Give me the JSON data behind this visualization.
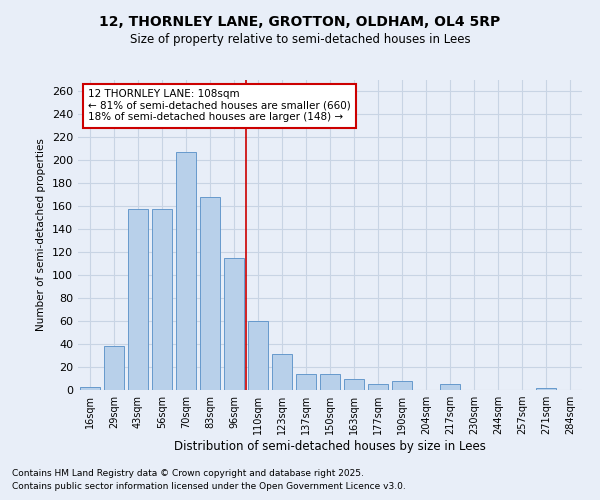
{
  "title1": "12, THORNLEY LANE, GROTTON, OLDHAM, OL4 5RP",
  "title2": "Size of property relative to semi-detached houses in Lees",
  "xlabel": "Distribution of semi-detached houses by size in Lees",
  "ylabel": "Number of semi-detached properties",
  "categories": [
    "16sqm",
    "29sqm",
    "43sqm",
    "56sqm",
    "70sqm",
    "83sqm",
    "96sqm",
    "110sqm",
    "123sqm",
    "137sqm",
    "150sqm",
    "163sqm",
    "177sqm",
    "190sqm",
    "204sqm",
    "217sqm",
    "230sqm",
    "244sqm",
    "257sqm",
    "271sqm",
    "284sqm"
  ],
  "values": [
    3,
    38,
    158,
    158,
    207,
    168,
    115,
    60,
    31,
    14,
    14,
    10,
    5,
    8,
    0,
    5,
    0,
    0,
    0,
    2,
    0
  ],
  "bar_color": "#b8d0ea",
  "bar_edge_color": "#6699cc",
  "grid_color": "#c8d4e4",
  "bg_color": "#e8eef8",
  "annotation_text": "12 THORNLEY LANE: 108sqm\n← 81% of semi-detached houses are smaller (660)\n18% of semi-detached houses are larger (148) →",
  "annotation_box_color": "#ffffff",
  "annotation_box_edge_color": "#cc0000",
  "property_line_color": "#cc0000",
  "footer1": "Contains HM Land Registry data © Crown copyright and database right 2025.",
  "footer2": "Contains public sector information licensed under the Open Government Licence v3.0.",
  "ylim": [
    0,
    270
  ],
  "yticks": [
    0,
    20,
    40,
    60,
    80,
    100,
    120,
    140,
    160,
    180,
    200,
    220,
    240,
    260
  ]
}
